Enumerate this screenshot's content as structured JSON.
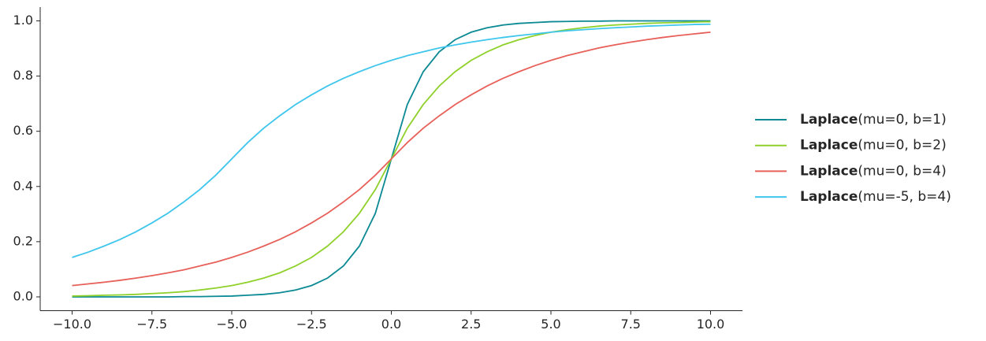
{
  "chart_data": {
    "type": "line",
    "x": [
      -10,
      -9.5,
      -9,
      -8.5,
      -8,
      -7.5,
      -7,
      -6.5,
      -6,
      -5.5,
      -5,
      -4.5,
      -4,
      -3.5,
      -3,
      -2.5,
      -2,
      -1.5,
      -1,
      -0.5,
      0,
      0.5,
      1,
      1.5,
      2,
      2.5,
      3,
      3.5,
      4,
      4.5,
      5,
      5.5,
      6,
      6.5,
      7,
      7.5,
      8,
      8.5,
      9,
      9.5,
      10
    ],
    "series": [
      {
        "name": "Laplace(mu=0, b=1)",
        "color": "#0b8a94",
        "values": [
          0,
          0,
          0,
          0,
          0,
          0,
          0,
          0.001,
          0.001,
          0.002,
          0.003,
          0.006,
          0.009,
          0.015,
          0.025,
          0.041,
          0.068,
          0.112,
          0.184,
          0.303,
          0.5,
          0.697,
          0.816,
          0.888,
          0.932,
          0.959,
          0.975,
          0.985,
          0.991,
          0.994,
          0.997,
          0.998,
          0.999,
          0.999,
          1,
          1,
          1,
          1,
          1,
          1,
          1
        ]
      },
      {
        "name": "Laplace(mu=0, b=2)",
        "color": "#8fd12a",
        "values": [
          0.003,
          0.004,
          0.006,
          0.007,
          0.009,
          0.012,
          0.015,
          0.019,
          0.025,
          0.032,
          0.041,
          0.053,
          0.068,
          0.087,
          0.112,
          0.143,
          0.184,
          0.236,
          0.303,
          0.389,
          0.5,
          0.611,
          0.697,
          0.764,
          0.816,
          0.857,
          0.888,
          0.913,
          0.932,
          0.947,
          0.959,
          0.968,
          0.975,
          0.981,
          0.985,
          0.988,
          0.991,
          0.993,
          0.994,
          0.996,
          0.997
        ]
      },
      {
        "name": "Laplace(mu=0, b=4)",
        "color": "#e8605a",
        "values": [
          0.041,
          0.047,
          0.053,
          0.06,
          0.068,
          0.077,
          0.087,
          0.098,
          0.112,
          0.126,
          0.143,
          0.162,
          0.184,
          0.208,
          0.236,
          0.268,
          0.303,
          0.344,
          0.389,
          0.441,
          0.5,
          0.559,
          0.611,
          0.656,
          0.697,
          0.732,
          0.764,
          0.792,
          0.816,
          0.838,
          0.857,
          0.874,
          0.888,
          0.902,
          0.913,
          0.923,
          0.932,
          0.94,
          0.947,
          0.953,
          0.959
        ]
      },
      {
        "name": "Laplace(mu=-5, b=4)",
        "color": "#3ec6ec",
        "values": [
          0.143,
          0.162,
          0.184,
          0.208,
          0.236,
          0.268,
          0.303,
          0.344,
          0.389,
          0.441,
          0.5,
          0.559,
          0.611,
          0.656,
          0.697,
          0.732,
          0.764,
          0.792,
          0.816,
          0.838,
          0.857,
          0.874,
          0.888,
          0.902,
          0.913,
          0.923,
          0.932,
          0.94,
          0.947,
          0.953,
          0.959,
          0.964,
          0.968,
          0.972,
          0.975,
          0.978,
          0.981,
          0.983,
          0.985,
          0.987,
          0.988
        ]
      }
    ],
    "xlim": [
      -11,
      11
    ],
    "ylim": [
      -0.05,
      1.05
    ],
    "xticks": [
      {
        "value": -10,
        "label": "−10.0"
      },
      {
        "value": -7.5,
        "label": "−7.5"
      },
      {
        "value": -5,
        "label": "−5.0"
      },
      {
        "value": -2.5,
        "label": "−2.5"
      },
      {
        "value": 0,
        "label": "0.0"
      },
      2.5,
      {
        "value": 5,
        "label": "5.0"
      },
      7.5,
      {
        "value": 10,
        "label": "10.0"
      }
    ],
    "yticks": [
      {
        "value": 0,
        "label": "0.0"
      },
      0.2,
      0.4,
      0.6,
      0.8,
      {
        "value": 1,
        "label": "1.0"
      }
    ],
    "grid": false,
    "legend": "right"
  }
}
